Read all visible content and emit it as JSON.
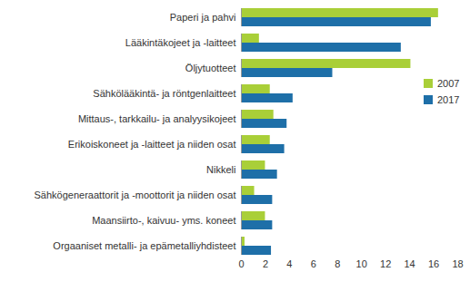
{
  "chart_data": {
    "type": "bar",
    "orientation": "horizontal",
    "categories": [
      "Paperi ja pahvi",
      "Lääkintäkojeet ja -laitteet",
      "Öljytuotteet",
      "Sähkölääkintä- ja röntgenlaitteet",
      "Mittaus-, tarkkailu- ja analyysikojeet",
      "Erikoiskoneet ja -laitteet ja niiden osat",
      "Nikkeli",
      "Sähkögeneraattorit ja -moottorit ja niiden osat",
      "Maansiirto-, kaivuu- yms. koneet",
      "Orgaaniset metalli- ja epämetalliyhdisteet"
    ],
    "series": [
      {
        "name": "2007",
        "color": "#a9cf38",
        "values": [
          16.4,
          1.5,
          14.1,
          2.4,
          2.7,
          2.4,
          2.0,
          1.1,
          2.0,
          0.3
        ]
      },
      {
        "name": "2017",
        "color": "#1e6fa8",
        "values": [
          15.8,
          13.3,
          7.6,
          4.3,
          3.8,
          3.6,
          3.0,
          2.6,
          2.6,
          2.5
        ]
      }
    ],
    "xlim": [
      0,
      18
    ],
    "xticks": [
      0,
      2,
      4,
      6,
      8,
      10,
      12,
      14,
      16,
      18
    ],
    "legend": "right",
    "grid": false
  }
}
